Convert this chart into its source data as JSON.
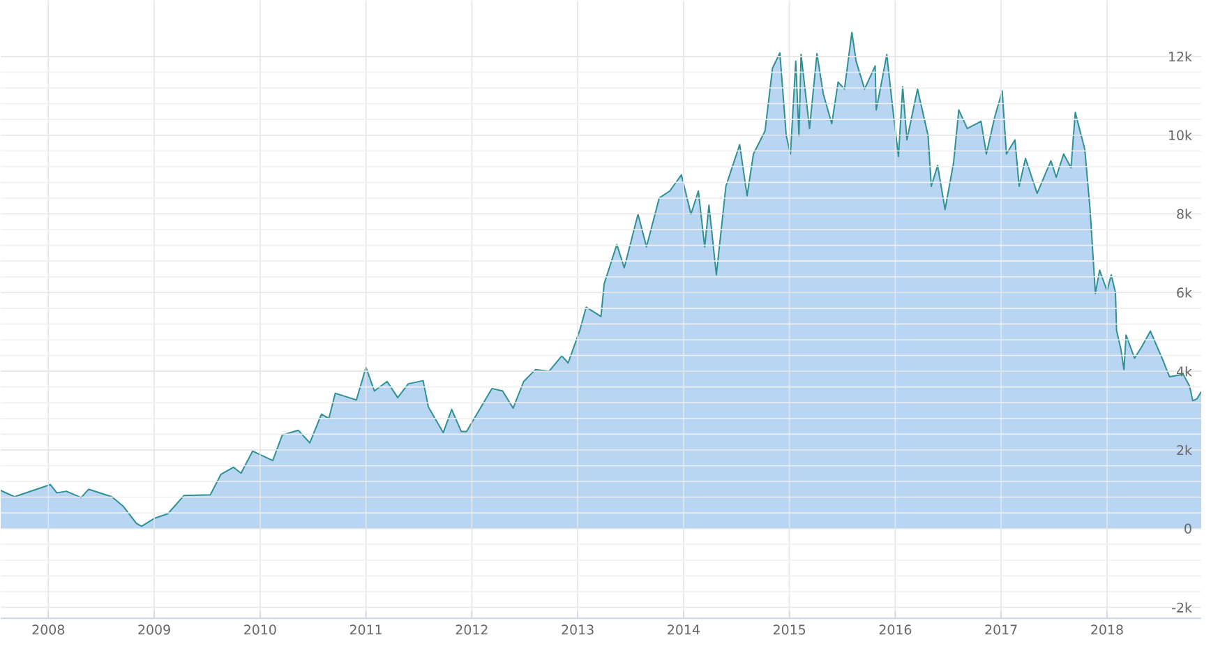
{
  "chart_data": {
    "type": "area",
    "grid": true,
    "xlim": [
      2007.55,
      2018.89
    ],
    "ylim": [
      -2280,
      13420
    ],
    "xticks": [
      2008,
      2009,
      2010,
      2011,
      2012,
      2013,
      2014,
      2015,
      2016,
      2017,
      2018
    ],
    "yticks": [
      {
        "value": -2000,
        "label": "-2k"
      },
      0,
      {
        "value": 2000,
        "label": "2k"
      },
      {
        "value": 4000,
        "label": "4k"
      },
      {
        "value": 6000,
        "label": "6k"
      },
      {
        "value": 8000,
        "label": "8k"
      },
      {
        "value": 10000,
        "label": "10k"
      },
      {
        "value": 12000,
        "label": "12k"
      }
    ],
    "series": [
      {
        "color": "#2e9190",
        "x": [
          2007.55,
          2007.68,
          2008.02,
          2008.08,
          2008.17,
          2008.31,
          2008.38,
          2008.6,
          2008.71,
          2008.83,
          2008.88,
          2009.0,
          2009.13,
          2009.28,
          2009.53,
          2009.63,
          2009.75,
          2009.82,
          2009.93,
          2010.12,
          2010.21,
          2010.36,
          2010.47,
          2010.58,
          2010.65,
          2010.71,
          2010.91,
          2011.0,
          2011.08,
          2011.2,
          2011.3,
          2011.4,
          2011.54,
          2011.59,
          2011.73,
          2011.81,
          2011.9,
          2011.95,
          2012.19,
          2012.29,
          2012.39,
          2012.49,
          2012.6,
          2012.73,
          2012.85,
          2012.91,
          2013.02,
          2013.08,
          2013.22,
          2013.25,
          2013.37,
          2013.44,
          2013.57,
          2013.65,
          2013.77,
          2013.87,
          2013.98,
          2014.07,
          2014.14,
          2014.2,
          2014.24,
          2014.31,
          2014.4,
          2014.53,
          2014.6,
          2014.66,
          2014.77,
          2014.84,
          2014.91,
          2014.97,
          2015.01,
          2015.06,
          2015.09,
          2015.11,
          2015.19,
          2015.26,
          2015.32,
          2015.4,
          2015.46,
          2015.52,
          2015.59,
          2015.63,
          2015.71,
          2015.81,
          2015.82,
          2015.92,
          2015.98,
          2016.03,
          2016.07,
          2016.11,
          2016.21,
          2016.31,
          2016.34,
          2016.4,
          2016.47,
          2016.55,
          2016.6,
          2016.68,
          2016.81,
          2016.86,
          2016.94,
          2017.01,
          2017.05,
          2017.13,
          2017.17,
          2017.23,
          2017.34,
          2017.47,
          2017.52,
          2017.59,
          2017.66,
          2017.7,
          2017.79,
          2017.84,
          2017.89,
          2017.93,
          2018.0,
          2018.04,
          2018.08,
          2018.09,
          2018.13,
          2018.16,
          2018.18,
          2018.26,
          2018.33,
          2018.41,
          2018.52,
          2018.59,
          2018.72,
          2018.78,
          2018.81,
          2018.85,
          2018.89
        ],
        "values": [
          970,
          810,
          1120,
          910,
          950,
          790,
          1000,
          810,
          560,
          140,
          60,
          260,
          380,
          840,
          860,
          1380,
          1560,
          1410,
          1970,
          1730,
          2380,
          2500,
          2180,
          2910,
          2800,
          3440,
          3270,
          4100,
          3500,
          3740,
          3330,
          3680,
          3760,
          3090,
          2440,
          3030,
          2470,
          2470,
          3560,
          3500,
          3060,
          3740,
          4040,
          4000,
          4390,
          4210,
          5040,
          5630,
          5390,
          6220,
          7220,
          6630,
          7990,
          7160,
          8400,
          8580,
          8990,
          7990,
          8580,
          7160,
          8220,
          6450,
          8700,
          9760,
          8460,
          9520,
          10110,
          11700,
          12090,
          9990,
          9520,
          11880,
          9990,
          12050,
          10170,
          12070,
          11050,
          10290,
          11350,
          11170,
          12610,
          11880,
          11170,
          11760,
          10640,
          12050,
          10580,
          9460,
          11230,
          9880,
          11170,
          9990,
          8700,
          9230,
          8110,
          9290,
          10640,
          10170,
          10350,
          9520,
          10470,
          11120,
          9520,
          9880,
          8700,
          9410,
          8520,
          9350,
          8930,
          9520,
          9170,
          10580,
          9640,
          8110,
          5980,
          6570,
          6040,
          6450,
          6000,
          5040,
          4570,
          4040,
          4920,
          4330,
          4630,
          5020,
          4330,
          3860,
          3920,
          3620,
          3250,
          3300,
          3480
        ]
      }
    ]
  }
}
